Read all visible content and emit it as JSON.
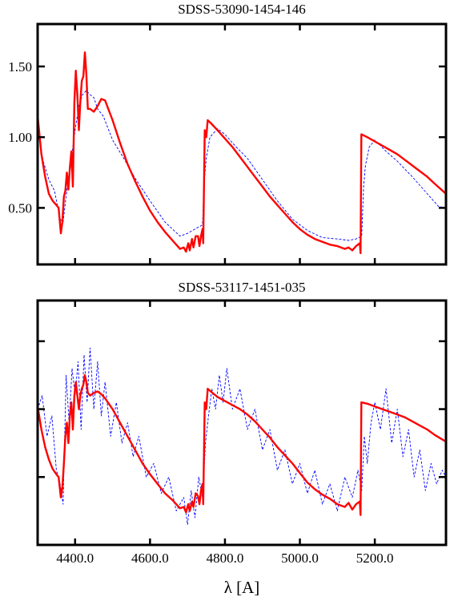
{
  "figure": {
    "xlabel": "λ [A]",
    "model_color": "#ff0000",
    "observed_color": "#0000ff"
  },
  "chart_data": [
    {
      "type": "line",
      "title": "SDSS-53090-1454-146",
      "xlabel": "λ [A]",
      "ylabel": "",
      "xlim": [
        4300,
        5390
      ],
      "ylim": [
        0.1,
        1.8
      ],
      "xticks": [
        4400,
        4600,
        4800,
        5000,
        5200
      ],
      "xtick_labels": [],
      "yticks": [
        0.5,
        1.0,
        1.5
      ],
      "ytick_labels": [
        "0.50",
        "1.00",
        "1.50"
      ],
      "grid": false,
      "series": [
        {
          "role": "model",
          "style": "solid",
          "color": "#ff0000",
          "x": [
            4300,
            4310,
            4320,
            4330,
            4340,
            4350,
            4356,
            4362,
            4366,
            4370,
            4374,
            4378,
            4382,
            4386,
            4390,
            4394,
            4398,
            4402,
            4406,
            4410,
            4414,
            4418,
            4422,
            4426,
            4430,
            4434,
            4440,
            4450,
            4460,
            4470,
            4480,
            4500,
            4520,
            4540,
            4560,
            4580,
            4600,
            4620,
            4640,
            4660,
            4680,
            4690,
            4696,
            4702,
            4706,
            4712,
            4716,
            4722,
            4728,
            4732,
            4736,
            4740,
            4742,
            4746,
            4750,
            4754,
            4758,
            4762,
            4780,
            4800,
            4820,
            4840,
            4860,
            4880,
            4900,
            4920,
            4940,
            4960,
            4980,
            5000,
            5020,
            5040,
            5060,
            5080,
            5100,
            5120,
            5130,
            5140,
            5150,
            5160,
            5162,
            5164,
            5180,
            5200,
            5220,
            5240,
            5260,
            5280,
            5300,
            5320,
            5340,
            5360,
            5390
          ],
          "y": [
            1.15,
            0.88,
            0.72,
            0.6,
            0.55,
            0.52,
            0.5,
            0.32,
            0.4,
            0.58,
            0.62,
            0.75,
            0.63,
            0.78,
            0.9,
            0.65,
            1.25,
            1.47,
            1.3,
            1.05,
            1.25,
            1.4,
            1.43,
            1.6,
            1.45,
            1.2,
            1.2,
            1.18,
            1.22,
            1.27,
            1.26,
            1.12,
            0.96,
            0.81,
            0.69,
            0.58,
            0.48,
            0.4,
            0.33,
            0.27,
            0.21,
            0.22,
            0.19,
            0.25,
            0.2,
            0.28,
            0.22,
            0.3,
            0.3,
            0.23,
            0.3,
            0.35,
            0.25,
            1.05,
            1.0,
            1.12,
            1.11,
            1.1,
            1.05,
            0.99,
            0.93,
            0.86,
            0.79,
            0.72,
            0.65,
            0.58,
            0.52,
            0.46,
            0.4,
            0.35,
            0.31,
            0.28,
            0.26,
            0.24,
            0.23,
            0.21,
            0.22,
            0.2,
            0.23,
            0.25,
            0.18,
            1.02,
            1.0,
            0.97,
            0.94,
            0.91,
            0.88,
            0.84,
            0.8,
            0.76,
            0.72,
            0.67,
            0.6
          ]
        },
        {
          "role": "observed",
          "style": "dashed",
          "color": "#0000ff",
          "x": [
            4300,
            4315,
            4330,
            4345,
            4360,
            4368,
            4375,
            4380,
            4390,
            4400,
            4410,
            4420,
            4430,
            4440,
            4450,
            4460,
            4475,
            4500,
            4530,
            4560,
            4600,
            4640,
            4680,
            4700,
            4720,
            4740,
            4745,
            4750,
            4760,
            4780,
            4800,
            4830,
            4860,
            4900,
            4940,
            4980,
            5020,
            5060,
            5100,
            5130,
            5150,
            5165,
            5170,
            5175,
            5185,
            5200,
            5230,
            5260,
            5300,
            5340,
            5370,
            5390
          ],
          "y": [
            1.05,
            0.83,
            0.7,
            0.62,
            0.42,
            0.4,
            0.56,
            0.66,
            0.85,
            1.05,
            1.22,
            1.3,
            1.33,
            1.3,
            1.28,
            1.2,
            1.15,
            0.98,
            0.85,
            0.71,
            0.55,
            0.4,
            0.3,
            0.32,
            0.35,
            0.38,
            0.7,
            0.85,
            1.0,
            1.06,
            1.02,
            0.93,
            0.85,
            0.7,
            0.55,
            0.42,
            0.34,
            0.29,
            0.28,
            0.27,
            0.28,
            0.3,
            0.65,
            0.8,
            0.93,
            0.98,
            0.9,
            0.83,
            0.72,
            0.6,
            0.51,
            0.5
          ]
        }
      ]
    },
    {
      "type": "line",
      "title": "SDSS-53117-1451-035",
      "xlabel": "λ [A]",
      "ylabel": "",
      "xlim": [
        4300,
        5390
      ],
      "ylim": [
        0,
        1.8
      ],
      "xticks": [
        4400,
        4600,
        4800,
        5000,
        5200
      ],
      "xtick_labels": [
        "4400.0",
        "4600.0",
        "4800.0",
        "5000.0",
        "5200.0"
      ],
      "yticks": [
        0.5,
        1.0,
        1.5
      ],
      "ytick_labels": [],
      "grid": false,
      "series": [
        {
          "role": "model",
          "style": "solid",
          "color": "#ff0000",
          "x": [
            4300,
            4310,
            4320,
            4330,
            4340,
            4350,
            4356,
            4362,
            4366,
            4370,
            4374,
            4378,
            4382,
            4386,
            4390,
            4394,
            4398,
            4402,
            4406,
            4410,
            4414,
            4418,
            4422,
            4426,
            4430,
            4434,
            4440,
            4450,
            4460,
            4470,
            4480,
            4500,
            4520,
            4540,
            4560,
            4580,
            4600,
            4620,
            4640,
            4660,
            4680,
            4690,
            4696,
            4702,
            4706,
            4712,
            4716,
            4722,
            4728,
            4732,
            4736,
            4740,
            4742,
            4746,
            4750,
            4754,
            4758,
            4762,
            4780,
            4800,
            4820,
            4840,
            4860,
            4880,
            4900,
            4920,
            4940,
            4960,
            4980,
            5000,
            5020,
            5040,
            5060,
            5080,
            5100,
            5120,
            5130,
            5140,
            5150,
            5160,
            5162,
            5164,
            5180,
            5200,
            5220,
            5240,
            5260,
            5280,
            5300,
            5320,
            5340,
            5360,
            5390
          ],
          "y": [
            1.02,
            0.85,
            0.72,
            0.63,
            0.56,
            0.52,
            0.5,
            0.35,
            0.42,
            0.6,
            0.8,
            0.9,
            0.75,
            0.95,
            1.05,
            0.85,
            1.1,
            1.2,
            1.1,
            1.0,
            1.1,
            1.15,
            1.18,
            1.25,
            1.2,
            1.12,
            1.1,
            1.12,
            1.13,
            1.11,
            1.08,
            1.0,
            0.9,
            0.8,
            0.7,
            0.6,
            0.52,
            0.45,
            0.38,
            0.33,
            0.27,
            0.28,
            0.24,
            0.3,
            0.25,
            0.32,
            0.28,
            0.38,
            0.36,
            0.3,
            0.4,
            0.45,
            0.3,
            1.05,
            1.0,
            1.15,
            1.14,
            1.13,
            1.09,
            1.06,
            1.03,
            1.0,
            0.96,
            0.91,
            0.85,
            0.79,
            0.72,
            0.66,
            0.6,
            0.53,
            0.46,
            0.41,
            0.37,
            0.34,
            0.3,
            0.28,
            0.31,
            0.26,
            0.3,
            0.32,
            0.22,
            1.05,
            1.04,
            1.02,
            1.0,
            0.98,
            0.96,
            0.94,
            0.91,
            0.88,
            0.85,
            0.81,
            0.76
          ]
        },
        {
          "role": "observed",
          "style": "dashed",
          "color": "#0000ff",
          "x": [
            4300,
            4312,
            4325,
            4338,
            4350,
            4360,
            4368,
            4376,
            4384,
            4392,
            4400,
            4408,
            4416,
            4424,
            4432,
            4440,
            4450,
            4460,
            4470,
            4480,
            4495,
            4510,
            4525,
            4540,
            4555,
            4570,
            4590,
            4610,
            4630,
            4650,
            4670,
            4690,
            4700,
            4710,
            4720,
            4730,
            4740,
            4748,
            4756,
            4765,
            4775,
            4785,
            4795,
            4805,
            4820,
            4840,
            4860,
            4880,
            4900,
            4920,
            4940,
            4960,
            4980,
            5000,
            5020,
            5040,
            5060,
            5080,
            5100,
            5120,
            5140,
            5155,
            5165,
            5172,
            5180,
            5190,
            5200,
            5215,
            5230,
            5245,
            5260,
            5275,
            5290,
            5305,
            5320,
            5335,
            5350,
            5365,
            5380,
            5390
          ],
          "y": [
            1.0,
            1.1,
            0.8,
            0.95,
            0.55,
            0.45,
            0.3,
            1.25,
            0.9,
            1.3,
            1.1,
            1.35,
            0.85,
            1.4,
            1.05,
            1.45,
            1.0,
            1.35,
            0.95,
            1.2,
            0.8,
            1.05,
            0.75,
            0.9,
            0.65,
            0.8,
            0.5,
            0.6,
            0.38,
            0.5,
            0.25,
            0.35,
            0.15,
            0.4,
            0.2,
            0.5,
            0.35,
            0.75,
            0.95,
            1.15,
            1.0,
            1.25,
            1.05,
            1.3,
            1.0,
            1.15,
            0.85,
            1.0,
            0.7,
            0.85,
            0.55,
            0.7,
            0.45,
            0.6,
            0.38,
            0.55,
            0.3,
            0.45,
            0.25,
            0.5,
            0.35,
            0.55,
            0.4,
            0.8,
            0.6,
            0.9,
            1.05,
            0.85,
            1.15,
            0.75,
            1.0,
            0.65,
            0.85,
            0.5,
            0.7,
            0.4,
            0.6,
            0.45,
            0.55,
            0.5
          ]
        }
      ]
    }
  ]
}
